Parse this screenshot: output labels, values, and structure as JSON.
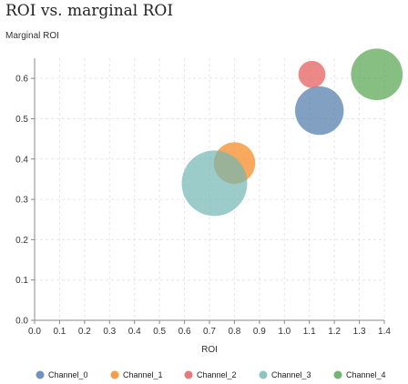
{
  "chart_data": {
    "type": "scatter",
    "title": "ROI vs. marginal ROI",
    "xlabel": "ROI",
    "ylabel": "Marginal ROI",
    "xlim": [
      0,
      1.4
    ],
    "ylim": [
      0,
      0.65
    ],
    "xticks": [
      "0.0",
      "0.1",
      "0.2",
      "0.3",
      "0.4",
      "0.5",
      "0.6",
      "0.7",
      "0.8",
      "0.9",
      "1.0",
      "1.1",
      "1.2",
      "1.3",
      "1.4"
    ],
    "yticks": [
      "0.0",
      "0.1",
      "0.2",
      "0.3",
      "0.4",
      "0.5",
      "0.6"
    ],
    "grid": true,
    "legend_position": "bottom",
    "series": [
      {
        "name": "Channel_0",
        "color": "#4c78a8",
        "x": 1.14,
        "y": 0.52,
        "size": 0.55
      },
      {
        "name": "Channel_1",
        "color": "#f58518",
        "x": 0.8,
        "y": 0.39,
        "size": 0.4
      },
      {
        "name": "Channel_2",
        "color": "#e45756",
        "x": 1.11,
        "y": 0.61,
        "size": 0.17
      },
      {
        "name": "Channel_3",
        "color": "#72b7b2",
        "x": 0.72,
        "y": 0.34,
        "size": 1.0
      },
      {
        "name": "Channel_4",
        "color": "#54a24b",
        "x": 1.37,
        "y": 0.61,
        "size": 0.62
      }
    ]
  }
}
